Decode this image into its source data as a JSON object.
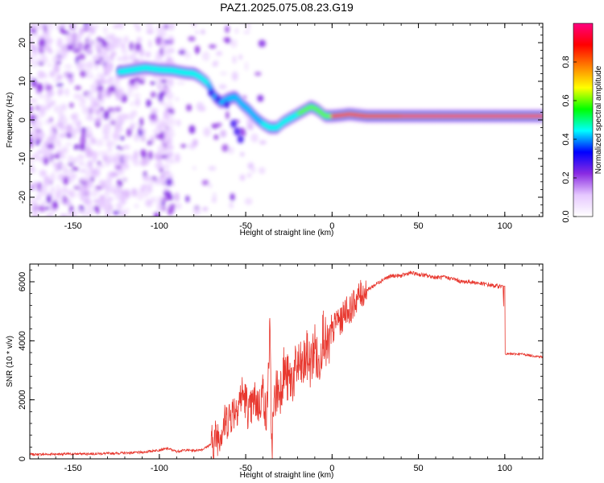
{
  "figure": {
    "title": "PAZ1.2025.075.08.23.G19"
  },
  "chart_data": [
    {
      "type": "heatmap",
      "xlabel": "Height of straight line (km)",
      "ylabel": "Frequency (Hz)",
      "xlim": [
        -175,
        122
      ],
      "ylim": [
        -25,
        25
      ],
      "xticks": [
        -150,
        -100,
        -50,
        0,
        50,
        100
      ],
      "yticks": [
        -20,
        -10,
        0,
        10,
        20
      ],
      "ridge": {
        "x": [
          -122,
          -115,
          -108,
          -100,
          -92,
          -85,
          -80,
          -76,
          -72,
          -68,
          -64,
          -60,
          -56,
          -52,
          -48,
          -44,
          -40,
          -36,
          -32,
          -28,
          -24,
          -20,
          -16,
          -12,
          -8,
          -4,
          0,
          5,
          10,
          20,
          40,
          60,
          80,
          100,
          122
        ],
        "y": [
          12.5,
          13,
          13.5,
          13,
          12.8,
          12.2,
          12,
          11,
          9.5,
          6,
          4.5,
          5.5,
          6,
          4,
          2.5,
          0.5,
          -1,
          -2,
          -2,
          -0.5,
          0.5,
          1.5,
          2.5,
          3.5,
          2.5,
          1,
          1,
          1.2,
          1.5,
          1,
          1,
          1,
          1,
          1,
          1
        ]
      },
      "colorbar": {
        "label": "Normalized spectral amplitude",
        "range": [
          0,
          1
        ],
        "ticks": [
          0.0,
          0.2,
          0.4,
          0.6,
          0.8
        ],
        "tick_labels": [
          "0.0",
          "0.2",
          "0.4",
          "0.6",
          "0.8"
        ],
        "colors": [
          "#ffffff",
          "#e6c8ff",
          "#8a2be2",
          "#0000ff",
          "#00ffff",
          "#00ff00",
          "#ffff00",
          "#ff8000",
          "#ff0000",
          "#ff0080"
        ]
      },
      "grid": false
    },
    {
      "type": "line",
      "xlabel": "Height of straight line (km)",
      "ylabel": "SNR (10 * v/v)",
      "xlim": [
        -175,
        122
      ],
      "ylim": [
        0,
        6600
      ],
      "xticks": [
        -150,
        -100,
        -50,
        0,
        50,
        100
      ],
      "yticks": [
        0,
        2000,
        4000,
        6000
      ],
      "color": "#e8382f",
      "x": [
        -175,
        -160,
        -145,
        -130,
        -120,
        -110,
        -100,
        -95,
        -90,
        -85,
        -80,
        -75,
        -70,
        -65,
        -60,
        -55,
        -52,
        -50,
        -48,
        -45,
        -42,
        -40,
        -38,
        -36,
        -35,
        -33,
        -30,
        -28,
        -25,
        -22,
        -20,
        -17,
        -15,
        -12,
        -10,
        -8,
        -5,
        -3,
        0,
        3,
        5,
        8,
        10,
        15,
        20,
        25,
        30,
        35,
        40,
        45,
        50,
        55,
        60,
        65,
        70,
        75,
        80,
        85,
        90,
        95,
        99,
        100,
        101,
        105,
        110,
        115,
        122
      ],
      "y": [
        150,
        160,
        170,
        180,
        200,
        220,
        300,
        350,
        250,
        300,
        280,
        320,
        500,
        900,
        1400,
        1800,
        2200,
        2000,
        1500,
        2000,
        1800,
        2400,
        1200,
        4400,
        400,
        2200,
        2400,
        3000,
        2600,
        2800,
        3200,
        3000,
        3500,
        3200,
        3900,
        3000,
        4400,
        3600,
        4200,
        4800,
        4600,
        5100,
        5000,
        5500,
        5700,
        5900,
        6100,
        6200,
        6200,
        6300,
        6250,
        6200,
        6150,
        6150,
        6100,
        6000,
        6000,
        5950,
        5900,
        5850,
        5850,
        3600,
        3550,
        3550,
        3550,
        3500,
        3450
      ],
      "grid": false
    }
  ]
}
